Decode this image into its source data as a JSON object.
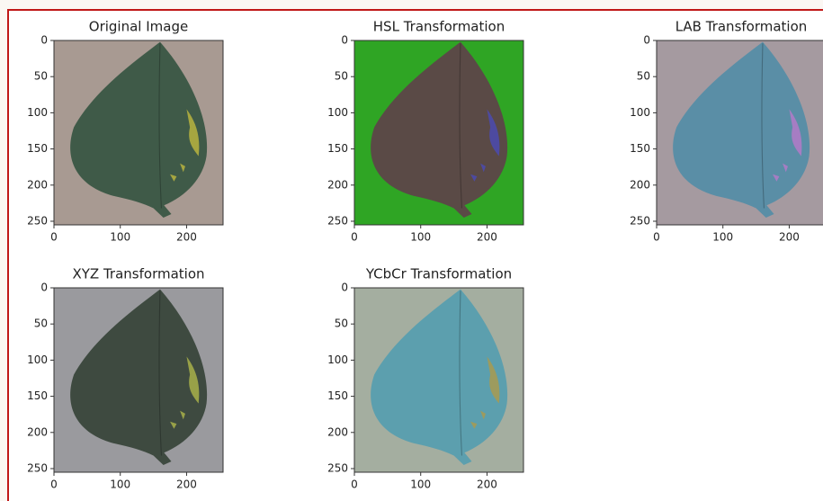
{
  "chart_data": [
    {
      "type": "image",
      "title": "Original Image",
      "xlim": [
        0,
        255
      ],
      "ylim": [
        255,
        0
      ],
      "xticks": [
        0,
        100,
        200
      ],
      "yticks": [
        0,
        50,
        100,
        150,
        200,
        250
      ],
      "background_color": "#a89a92",
      "leaf_color": "#3f5a48",
      "spot_color": "#b9b440"
    },
    {
      "type": "image",
      "title": "HSL Transformation",
      "xlim": [
        0,
        255
      ],
      "ylim": [
        255,
        0
      ],
      "xticks": [
        0,
        100,
        200
      ],
      "yticks": [
        0,
        50,
        100,
        150,
        200,
        250
      ],
      "background_color": "#2fa524",
      "leaf_color": "#5a4a46",
      "spot_color": "#4b4ab0"
    },
    {
      "type": "image",
      "title": "LAB Transformation",
      "xlim": [
        0,
        255
      ],
      "ylim": [
        255,
        0
      ],
      "xticks": [
        0,
        100,
        200
      ],
      "yticks": [
        0,
        50,
        100,
        150,
        200,
        250
      ],
      "background_color": "#a59aa0",
      "leaf_color": "#5a8ea6",
      "spot_color": "#b47ac8"
    },
    {
      "type": "image",
      "title": "XYZ Transformation",
      "xlim": [
        0,
        255
      ],
      "ylim": [
        255,
        0
      ],
      "xticks": [
        0,
        100,
        200
      ],
      "yticks": [
        0,
        50,
        100,
        150,
        200,
        250
      ],
      "background_color": "#9a9a9e",
      "leaf_color": "#3e4a40",
      "spot_color": "#a8b04a"
    },
    {
      "type": "image",
      "title": "YCbCr Transformation",
      "xlim": [
        0,
        255
      ],
      "ylim": [
        255,
        0
      ],
      "xticks": [
        0,
        100,
        200
      ],
      "yticks": [
        0,
        50,
        100,
        150,
        200,
        250
      ],
      "background_color": "#a4aea0",
      "leaf_color": "#5c9fae",
      "spot_color": "#a89a50"
    }
  ]
}
